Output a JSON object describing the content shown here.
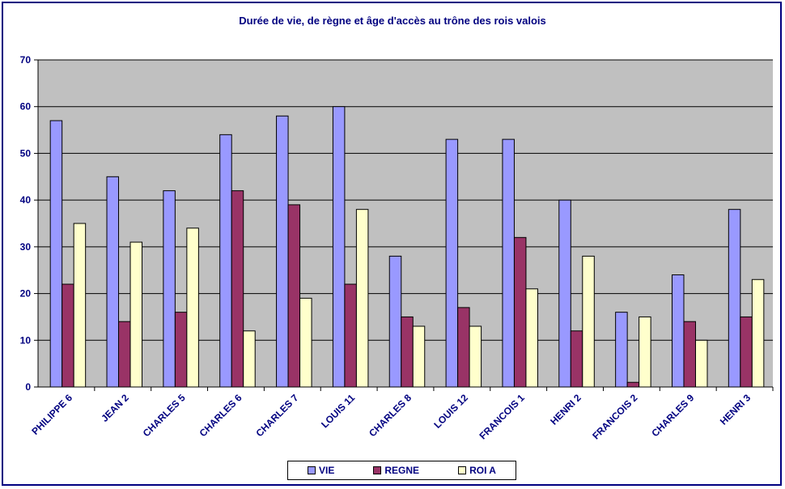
{
  "chart_data": {
    "type": "bar",
    "title": "Durée de vie, de règne et âge d'accès au trône des rois valois",
    "categories": [
      "PHILIPPE 6",
      "JEAN 2",
      "CHARLES 5",
      "CHARLES 6",
      "CHARLES 7",
      "LOUIS 11",
      "CHARLES 8",
      "LOUIS 12",
      "FRANCOIS 1",
      "HENRI 2",
      "FRANCOIS 2",
      "CHARLES 9",
      "HENRI 3"
    ],
    "series": [
      {
        "name": "VIE",
        "color": "#9999ff",
        "values": [
          57,
          45,
          42,
          54,
          58,
          60,
          28,
          53,
          53,
          40,
          16,
          24,
          38
        ]
      },
      {
        "name": "REGNE",
        "color": "#993366",
        "values": [
          22,
          14,
          16,
          42,
          39,
          22,
          15,
          17,
          32,
          12,
          1,
          14,
          15
        ]
      },
      {
        "name": "ROI A",
        "color": "#ffffcc",
        "values": [
          35,
          31,
          34,
          12,
          19,
          38,
          13,
          13,
          21,
          28,
          15,
          10,
          23
        ]
      }
    ],
    "ylim": [
      0,
      70
    ],
    "yticks": [
      0,
      10,
      20,
      30,
      40,
      50,
      60,
      70
    ],
    "grid": true,
    "plot_background": "#c0c0c0",
    "legend_position": "bottom"
  }
}
